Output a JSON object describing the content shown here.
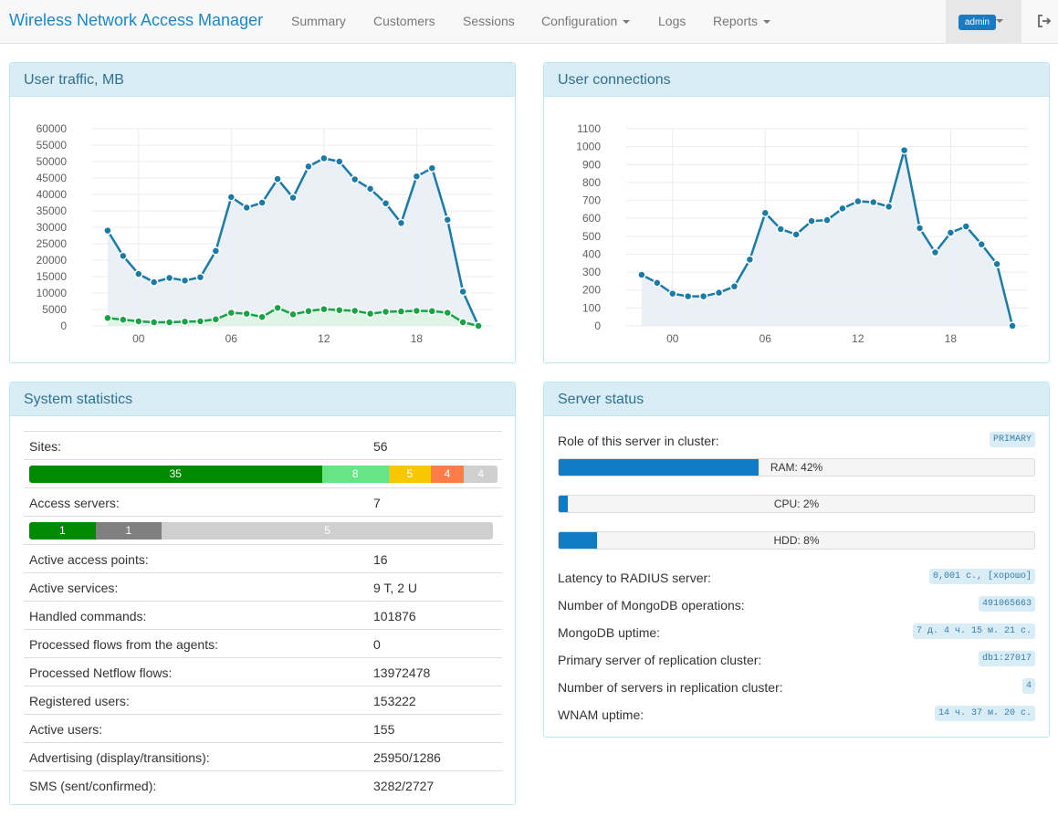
{
  "nav": {
    "brand": "Wireless Network Access Manager",
    "items": [
      {
        "label": "Summary",
        "dropdown": false
      },
      {
        "label": "Customers",
        "dropdown": false
      },
      {
        "label": "Sessions",
        "dropdown": false
      },
      {
        "label": "Configuration",
        "dropdown": true
      },
      {
        "label": "Logs",
        "dropdown": false
      },
      {
        "label": "Reports",
        "dropdown": true
      }
    ],
    "user": "admin",
    "logout_icon": "logout-icon"
  },
  "traffic": {
    "title": "User traffic, MB",
    "chart_data": {
      "type": "area",
      "x": [
        -2,
        -1,
        0,
        1,
        2,
        3,
        4,
        5,
        6,
        7,
        8,
        9,
        10,
        11,
        12,
        13,
        14,
        15,
        16,
        17,
        18,
        19,
        20,
        21,
        22
      ],
      "x_ticks": [
        "00",
        "06",
        "12",
        "18"
      ],
      "ylim": [
        0,
        60000
      ],
      "y_ticks": [
        "0",
        "5000",
        "10000",
        "15000",
        "20000",
        "25000",
        "30000",
        "35000",
        "40000",
        "45000",
        "50000",
        "55000",
        "60000"
      ],
      "grid": true,
      "series": [
        {
          "color": "#1a7ba6",
          "fill": "#e9eef6",
          "values": [
            29000,
            21300,
            15800,
            13300,
            14600,
            13800,
            14800,
            22800,
            39200,
            36000,
            37500,
            44700,
            39000,
            48500,
            51000,
            50000,
            44600,
            41700,
            37300,
            31300,
            45500,
            48000,
            32300,
            10400,
            0
          ]
        },
        {
          "color": "#18a446",
          "fill": "#dff3e4",
          "values": [
            2400,
            1900,
            1400,
            1100,
            1100,
            1300,
            1400,
            2000,
            4000,
            3700,
            2700,
            5500,
            3500,
            4500,
            5100,
            4800,
            4600,
            3700,
            4300,
            4400,
            4600,
            4500,
            4000,
            1100,
            0
          ]
        }
      ]
    }
  },
  "connections": {
    "title": "User connections",
    "chart_data": {
      "type": "area",
      "x": [
        -2,
        -1,
        0,
        1,
        2,
        3,
        4,
        5,
        6,
        7,
        8,
        9,
        10,
        11,
        12,
        13,
        14,
        15,
        16,
        17,
        18,
        19,
        20,
        21,
        22
      ],
      "x_ticks": [
        "00",
        "06",
        "12",
        "18"
      ],
      "ylim": [
        0,
        1100
      ],
      "y_ticks": [
        "0",
        "100",
        "200",
        "300",
        "400",
        "500",
        "600",
        "700",
        "800",
        "900",
        "1000",
        "1100"
      ],
      "grid": true,
      "series": [
        {
          "color": "#1a7ba6",
          "fill": "#e9eef6",
          "values": [
            285,
            240,
            180,
            165,
            165,
            185,
            220,
            370,
            630,
            540,
            510,
            585,
            590,
            655,
            695,
            690,
            665,
            980,
            545,
            410,
            520,
            555,
            455,
            345,
            0
          ]
        }
      ]
    }
  },
  "stats": {
    "title": "System statistics",
    "rows_top": {
      "sites_label": "Sites:",
      "sites_value": "56",
      "sites_bar": [
        {
          "label": "35",
          "value": 35,
          "color": "#008a00"
        },
        {
          "label": "8",
          "value": 8,
          "color": "#66e486"
        },
        {
          "label": "5",
          "value": 5,
          "color": "#f7c800"
        },
        {
          "label": "4",
          "value": 4,
          "color": "#fc7c4a"
        },
        {
          "label": "4",
          "value": 4,
          "color": "#cfcfcf"
        }
      ],
      "access_label": "Access servers:",
      "access_value": "7",
      "access_bar": [
        {
          "label": "1",
          "value": 1,
          "color": "#008a00"
        },
        {
          "label": "1",
          "value": 1,
          "color": "#808080"
        },
        {
          "label": "5",
          "value": 5,
          "color": "#cfcfcf"
        }
      ]
    },
    "rows": [
      {
        "label": "Active access points:",
        "value": "16"
      },
      {
        "label": "Active services:",
        "value": "9 T, 2 U"
      },
      {
        "label": "Handled commands:",
        "value": "101876"
      },
      {
        "label": "Processed flows from the agents:",
        "value": "0"
      },
      {
        "label": "Processed Netflow flows:",
        "value": "13972478"
      },
      {
        "label": "Registered users:",
        "value": "153222"
      },
      {
        "label": "Active users:",
        "value": "155"
      },
      {
        "label": "Advertising (display/transitions):",
        "value": "25950/1286"
      },
      {
        "label": "SMS (sent/confirmed):",
        "value": "3282/2727"
      }
    ]
  },
  "server": {
    "title": "Server status",
    "role_label": "Role of this server in cluster:",
    "role_value": "PRIMARY",
    "ram": {
      "text": "RAM: 42%",
      "percent": 42
    },
    "cpu": {
      "text": "CPU: 2%",
      "percent": 2
    },
    "hdd": {
      "text": "HDD: 8%",
      "percent": 8
    },
    "rows": [
      {
        "label": "Latency to RADIUS server:",
        "value": "0,001 с., [хорошо]"
      },
      {
        "label": "Number of MongoDB operations:",
        "value": "491065663"
      },
      {
        "label": "MongoDB uptime:",
        "value": "7 д. 4 ч. 15 м. 21 с."
      },
      {
        "label": "Primary server of replication cluster:",
        "value": "db1:27017"
      },
      {
        "label": "Number of servers in replication cluster:",
        "value": "4"
      },
      {
        "label": "WNAM uptime:",
        "value": "14 ч. 37 м. 20 с."
      }
    ]
  }
}
